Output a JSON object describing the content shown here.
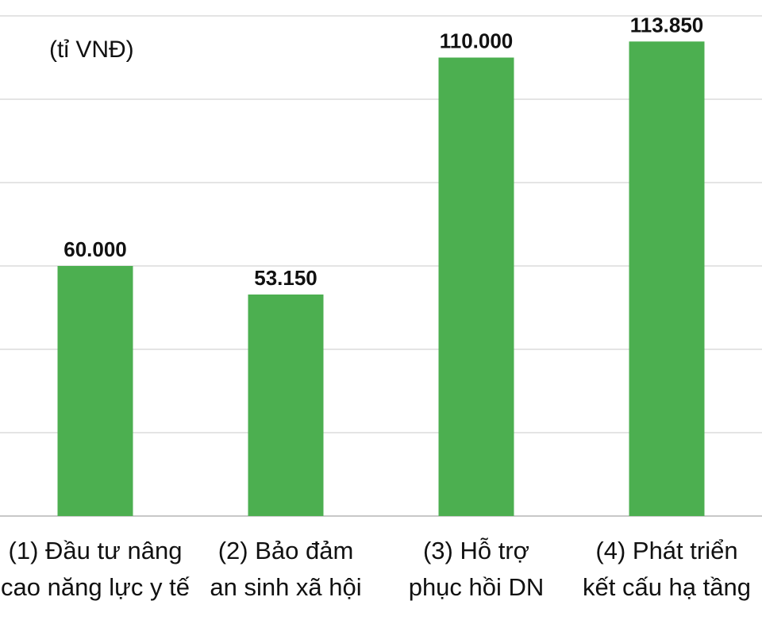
{
  "chart_data": {
    "type": "bar",
    "unit_label": "(tỉ VNĐ)",
    "categories": [
      [
        "(1) Đầu tư nâng",
        "cao năng lực y tế"
      ],
      [
        "(2) Bảo đảm",
        "an sinh xã hội"
      ],
      [
        "(3) Hỗ trợ",
        "phục hồi DN"
      ],
      [
        "(4) Phát triển",
        "kết cấu hạ tầng"
      ]
    ],
    "values": [
      60000,
      53150,
      110000,
      113850
    ],
    "value_labels": [
      "60.000",
      "53.150",
      "110.000",
      "113.850"
    ],
    "ylim": [
      0,
      120000
    ],
    "gridlines": true,
    "colors": {
      "bar": "#4caf50",
      "grid": "#dcdcdc",
      "text": "#111111"
    }
  }
}
